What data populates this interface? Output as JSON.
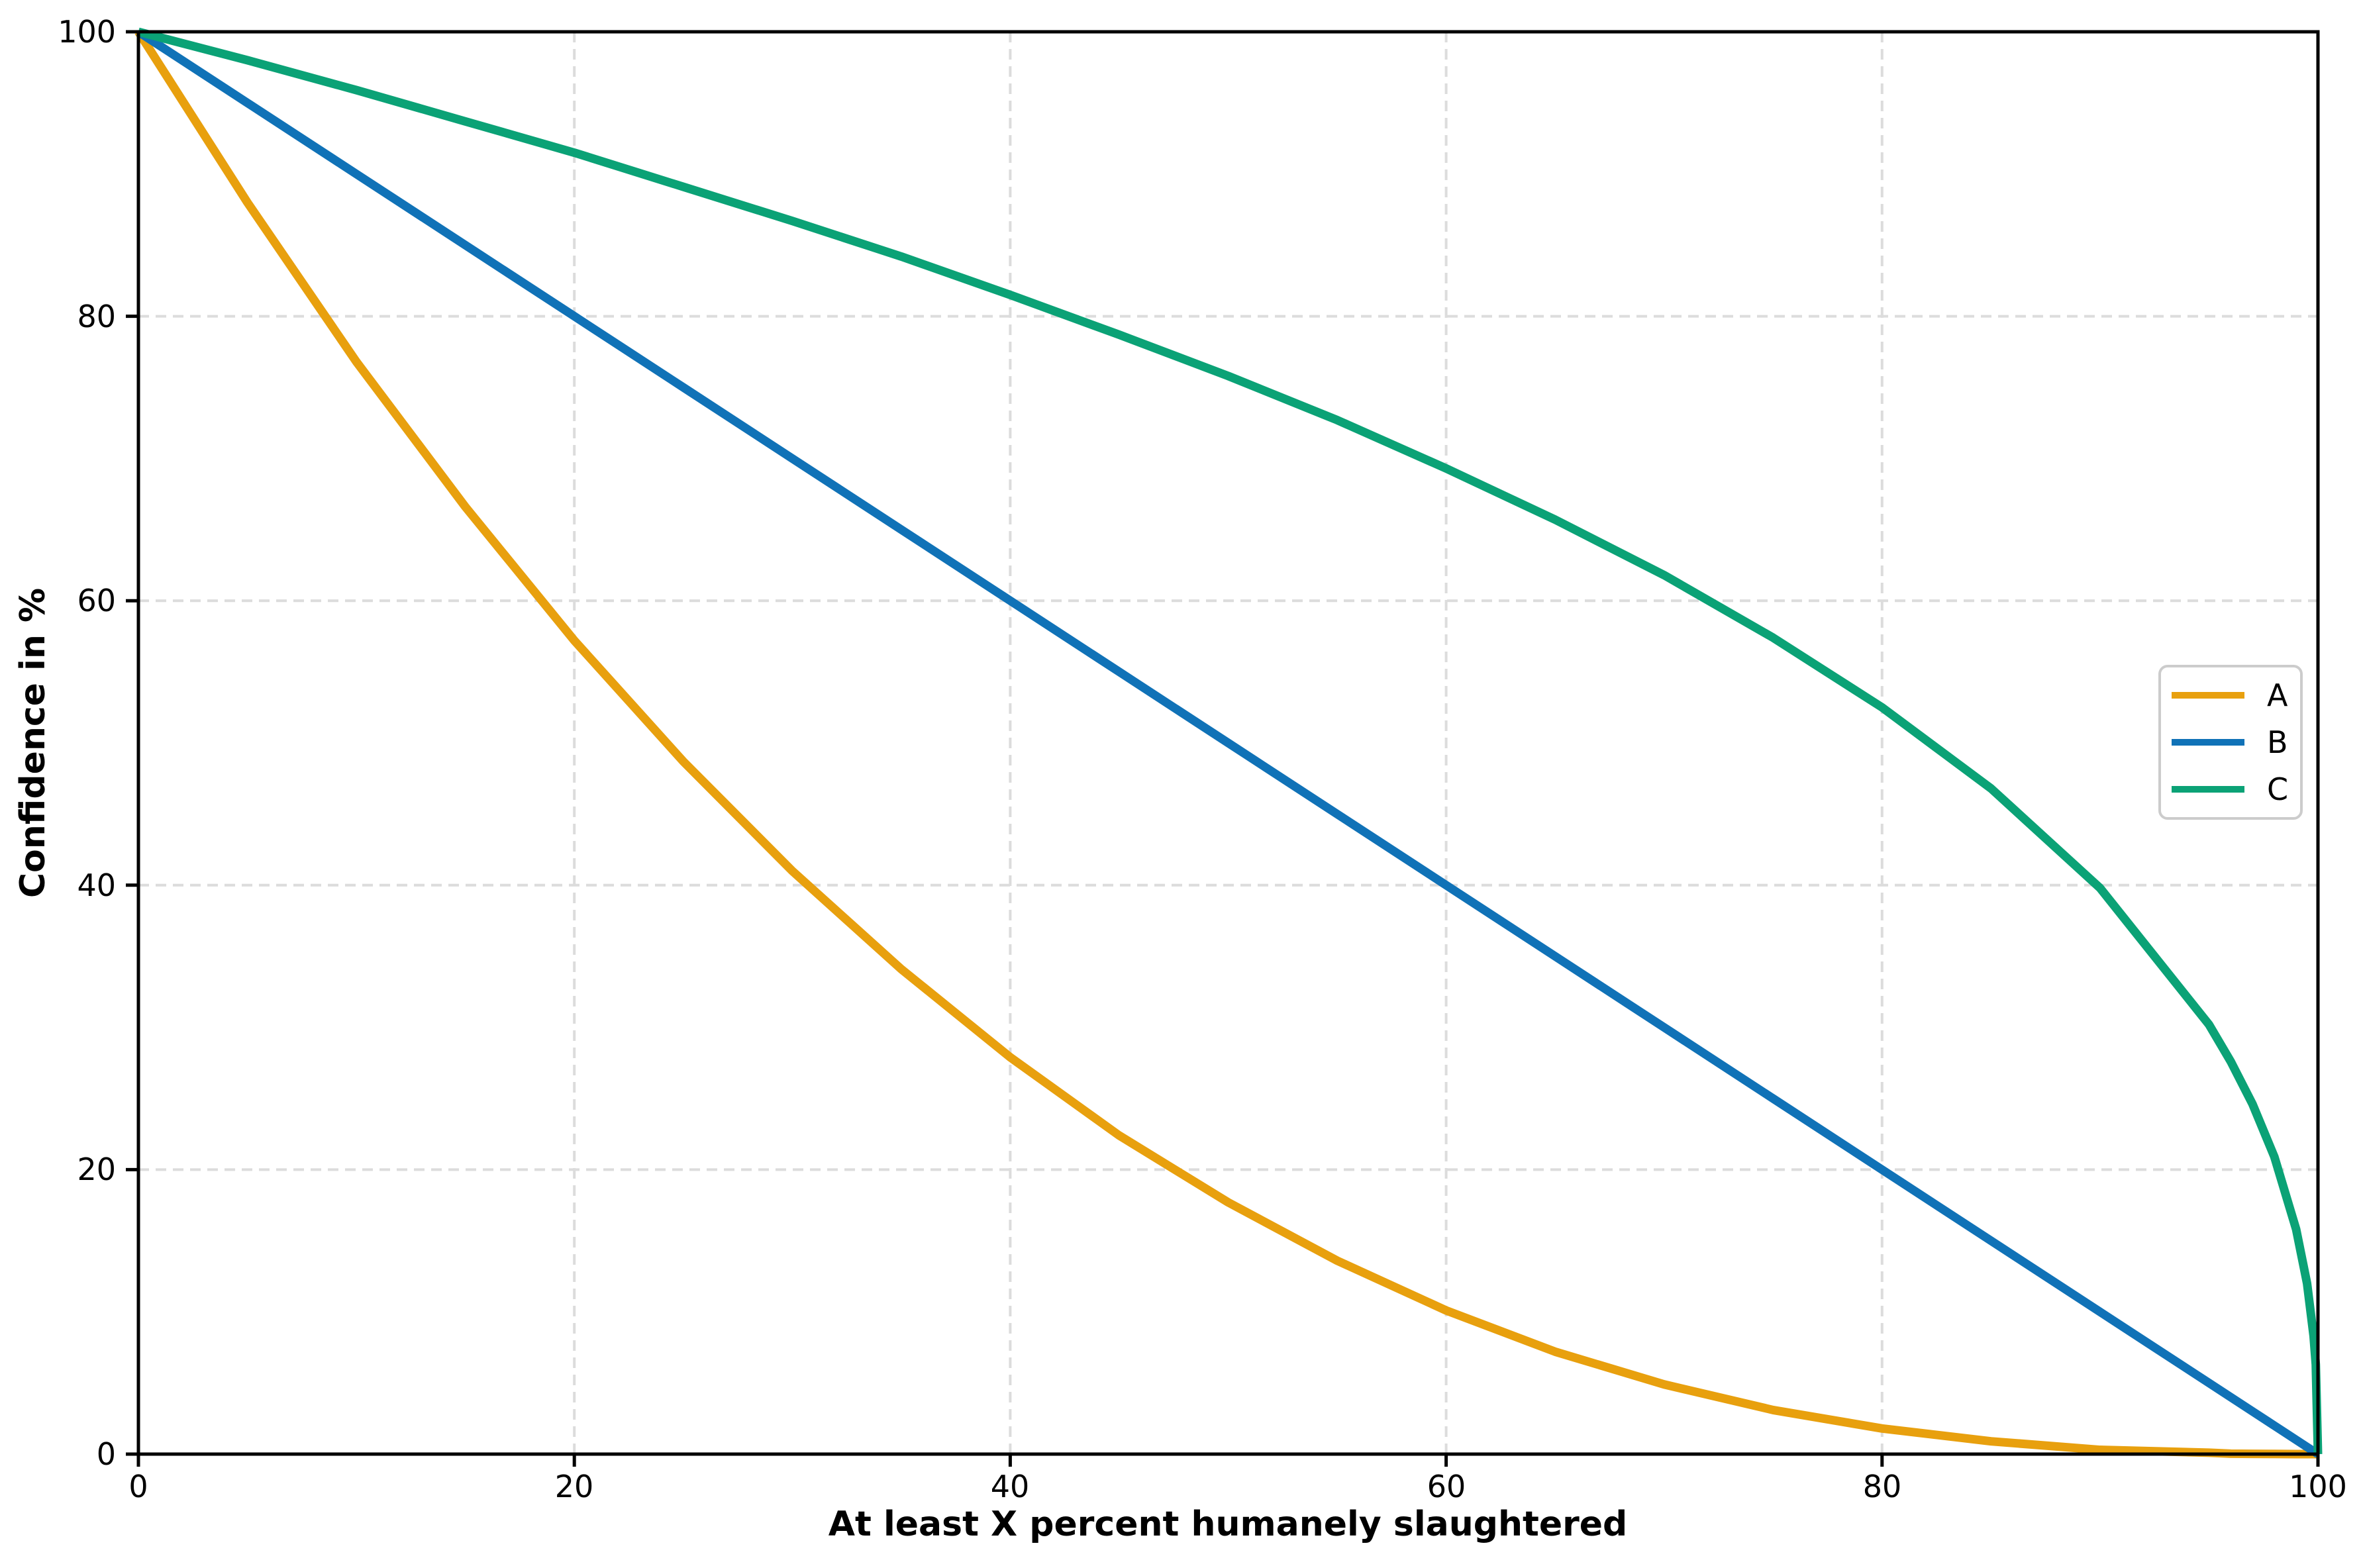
{
  "chart_data": {
    "type": "line",
    "title": "",
    "xlabel": "At least X percent humanely slaughtered",
    "ylabel": "Confidence in %",
    "xlim": [
      0,
      100
    ],
    "ylim": [
      0,
      100
    ],
    "grid": "dashed",
    "grid_color": "#dcdcdc",
    "axis_color": "#000000",
    "legend_position": "center right",
    "x_ticks": [
      0,
      20,
      40,
      60,
      80,
      100
    ],
    "y_ticks": [
      0,
      20,
      40,
      60,
      80,
      100
    ],
    "x_tick_labels": [
      "0",
      "20",
      "40",
      "60",
      "80",
      "100"
    ],
    "y_tick_labels": [
      "0",
      "20",
      "40",
      "60",
      "80",
      "100"
    ],
    "x": [
      0,
      5,
      10,
      15,
      20,
      25,
      30,
      35,
      40,
      45,
      50,
      55,
      60,
      65,
      70,
      75,
      80,
      85,
      90,
      95,
      96,
      97,
      98,
      99,
      99.5,
      99.8,
      99.9,
      100
    ],
    "series": [
      {
        "name": "A",
        "color": "#E8A00E",
        "values": [
          100,
          88.0,
          76.8,
          66.6,
          57.2,
          48.7,
          41.0,
          34.1,
          27.9,
          22.4,
          17.7,
          13.6,
          10.1,
          7.2,
          4.9,
          3.1,
          1.8,
          0.9,
          0.3,
          0.1,
          0.03,
          0.02,
          0.01,
          0,
          0,
          0,
          0,
          0
        ]
      },
      {
        "name": "B",
        "color": "#1072B7",
        "values": [
          100,
          95,
          90,
          85,
          80,
          75,
          70,
          65,
          60,
          55,
          50,
          45,
          40,
          35,
          30,
          25,
          20,
          15,
          10,
          5,
          4,
          3,
          2,
          1,
          0.5,
          0.2,
          0.1,
          0
        ]
      },
      {
        "name": "C",
        "color": "#0BA276",
        "values": [
          100,
          98.0,
          95.9,
          93.7,
          91.5,
          89.1,
          86.7,
          84.2,
          81.5,
          78.7,
          75.8,
          72.7,
          69.3,
          65.7,
          61.8,
          57.4,
          52.5,
          46.8,
          39.8,
          30.2,
          27.6,
          24.6,
          20.9,
          15.8,
          12.0,
          8.3,
          6.3,
          0
        ]
      }
    ]
  }
}
